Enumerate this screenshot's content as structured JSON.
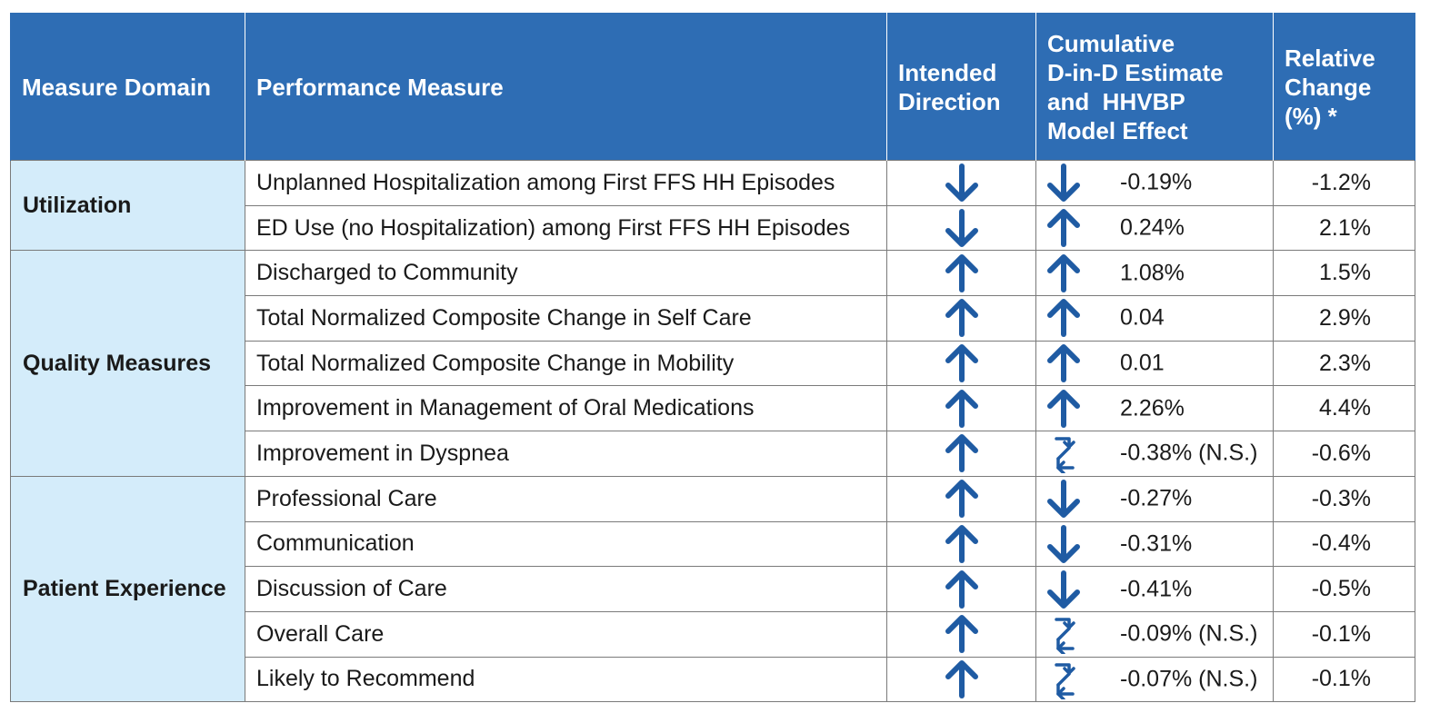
{
  "headers": {
    "domain": "Measure Domain",
    "measure": "Performance Measure",
    "direction_line1": "Intended",
    "direction_line2": "Direction",
    "estimate_line1": "Cumulative",
    "estimate_line2": "D-in-D Estimate",
    "estimate_line3": "and  HHVBP",
    "estimate_line4": "Model Effect",
    "relative_line1": "Relative",
    "relative_line2": "Change",
    "relative_line3": "(%) *"
  },
  "colors": {
    "header_bg": "#2e6db4",
    "domain_bg": "#d4ecfa",
    "arrow": "#1f5ba3"
  },
  "domains": [
    {
      "label": "Utilization",
      "rows": 2
    },
    {
      "label": "Quality Measures",
      "rows": 5
    },
    {
      "label": "Patient Experience",
      "rows": 5
    }
  ],
  "rows": [
    {
      "measure": "Unplanned Hospitalization among First FFS HH Episodes",
      "intended": "down-arrow-icon",
      "effect": "down-arrow-icon",
      "estimate": "-0.19%",
      "relative": "-1.2%"
    },
    {
      "measure": "ED Use (no Hospitalization) among First FFS HH Episodes",
      "intended": "down-arrow-icon",
      "effect": "up-arrow-icon",
      "estimate": "0.24%",
      "relative": "2.1%"
    },
    {
      "measure": "Discharged to Community",
      "intended": "up-arrow-icon",
      "effect": "up-arrow-icon",
      "estimate": "1.08%",
      "relative": "1.5%"
    },
    {
      "measure": "Total Normalized Composite Change in Self Care",
      "intended": "up-arrow-icon",
      "effect": "up-arrow-icon",
      "estimate": "0.04",
      "relative": "2.9%"
    },
    {
      "measure": "Total Normalized Composite Change in Mobility",
      "intended": "up-arrow-icon",
      "effect": "up-arrow-icon",
      "estimate": "0.01",
      "relative": "2.3%"
    },
    {
      "measure": "Improvement in Management of Oral Medications",
      "intended": "up-arrow-icon",
      "effect": "up-arrow-icon",
      "estimate": "2.26%",
      "relative": "4.4%"
    },
    {
      "measure": "Improvement in Dyspnea",
      "intended": "up-arrow-icon",
      "effect": "bidirectional-arrows-icon",
      "estimate": "-0.38% (N.S.)",
      "relative": "-0.6%"
    },
    {
      "measure": "Professional Care",
      "intended": "up-arrow-icon",
      "effect": "down-arrow-icon",
      "estimate": "-0.27%",
      "relative": "-0.3%"
    },
    {
      "measure": "Communication",
      "intended": "up-arrow-icon",
      "effect": "down-arrow-icon",
      "estimate": "-0.31%",
      "relative": "-0.4%"
    },
    {
      "measure": "Discussion of Care",
      "intended": "up-arrow-icon",
      "effect": "down-arrow-icon",
      "estimate": "-0.41%",
      "relative": "-0.5%"
    },
    {
      "measure": "Overall Care",
      "intended": "up-arrow-icon",
      "effect": "bidirectional-arrows-icon",
      "estimate": "-0.09% (N.S.)",
      "relative": "-0.1%"
    },
    {
      "measure": "Likely to Recommend",
      "intended": "up-arrow-icon",
      "effect": "bidirectional-arrows-icon",
      "estimate": "-0.07% (N.S.)",
      "relative": "-0.1%"
    }
  ]
}
